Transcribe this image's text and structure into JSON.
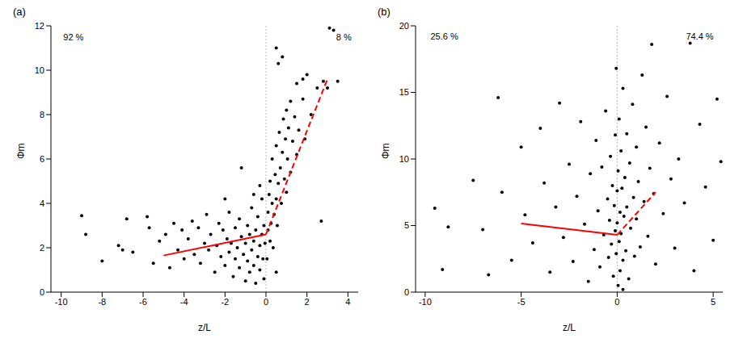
{
  "chart_data": [
    {
      "type": "scatter",
      "title": "(a)",
      "x_label": "z/L",
      "y_label": "Φm",
      "xlim": [
        -10.5,
        4.5
      ],
      "xticks": [
        -10,
        -8,
        -6,
        -4,
        -2,
        0,
        2,
        4
      ],
      "ylim": [
        0,
        12
      ],
      "yticks": [
        0,
        2,
        4,
        6,
        8,
        10,
        12
      ],
      "vlines": [
        0
      ],
      "annotations": [
        {
          "text": "92 %",
          "x": -9.4,
          "y": 11.5
        },
        {
          "text": "8 %",
          "x": 3.8,
          "y": 11.5
        }
      ],
      "series": [
        {
          "type": "scatter",
          "color": "#000000",
          "marker": "circle",
          "x": [
            -9,
            -8.8,
            -8,
            -7.2,
            -7,
            -6.8,
            -6.5,
            -5.8,
            -5.7,
            -5.5,
            -5.2,
            -4.9,
            -4.7,
            -4.5,
            -4.3,
            -4.1,
            -4,
            -3.8,
            -3.6,
            -3.5,
            -3.3,
            -3.2,
            -3.0,
            -2.9,
            -2.8,
            -2.7,
            -2.5,
            -2.4,
            -2.3,
            -2.2,
            -2.1,
            -2.0,
            -1.9,
            -1.8,
            -1.8,
            -1.7,
            -1.6,
            -1.5,
            -1.5,
            -1.4,
            -1.3,
            -1.3,
            -1.2,
            -1.1,
            -1.0,
            -1.0,
            -0.9,
            -0.9,
            -0.8,
            -0.8,
            -0.7,
            -0.7,
            -0.6,
            -0.6,
            -0.5,
            -0.5,
            -0.4,
            -0.4,
            -0.3,
            -0.3,
            -0.2,
            -0.2,
            -0.15,
            -0.1,
            -0.1,
            -0.05,
            -1.2,
            -2.0,
            -0.3,
            -0.6,
            0.05,
            0.1,
            0.1,
            0.15,
            0.2,
            0.2,
            0.25,
            0.3,
            0.3,
            0.35,
            0.4,
            0.45,
            0.5,
            0.5,
            0.55,
            0.6,
            0.65,
            0.7,
            0.75,
            0.8,
            0.85,
            0.9,
            0.95,
            1.0,
            1.0,
            1.05,
            1.1,
            1.2,
            1.2,
            1.3,
            1.4,
            1.5,
            1.5,
            1.6,
            1.8,
            1.9,
            2.0,
            2.2,
            2.5,
            2.8,
            3.0,
            3.1,
            3.3,
            3.5,
            0.8,
            0.5,
            0.6,
            1.8,
            2.7,
            0.5
          ],
          "values": [
            3.45,
            2.6,
            1.4,
            2.1,
            1.9,
            3.3,
            1.8,
            3.4,
            2.9,
            1.3,
            2.3,
            2.6,
            1.1,
            3.1,
            1.9,
            2.8,
            1.5,
            2.4,
            3.2,
            1.7,
            2.9,
            1.3,
            2.2,
            3.5,
            1.9,
            2.6,
            0.9,
            2.1,
            3.1,
            1.6,
            2.8,
            1.2,
            2.4,
            3.6,
            1.8,
            2.2,
            0.7,
            2.9,
            1.5,
            2.0,
            3.3,
            1.1,
            2.5,
            1.7,
            0.5,
            2.2,
            3.0,
            1.4,
            2.6,
            0.9,
            1.9,
            3.8,
            2.3,
            1.2,
            2.8,
            0.4,
            1.6,
            3.4,
            2.1,
            1.0,
            2.6,
            4.2,
            1.5,
            3.0,
            0.6,
            2.2,
            5.6,
            4.2,
            4.8,
            4.4,
            1.5,
            2.8,
            3.6,
            4.4,
            2.3,
            5.0,
            3.1,
            4.0,
            6.0,
            2.0,
            3.5,
            5.3,
            4.2,
            6.6,
            3.0,
            4.9,
            7.2,
            5.6,
            4.0,
            6.3,
            7.8,
            5.1,
            6.9,
            4.5,
            8.2,
            6.0,
            7.4,
            5.4,
            8.6,
            6.8,
            7.9,
            6.2,
            9.4,
            7.3,
            8.7,
            6.9,
            9.8,
            8.0,
            9.2,
            9.5,
            9.2,
            11.9,
            11.8,
            9.5,
            10.6,
            11.0,
            10.3,
            9.6,
            3.2,
            0.9
          ]
        },
        {
          "type": "line",
          "color": "#ff0000",
          "line_style": "solid",
          "x": [
            -5,
            0
          ],
          "values": [
            1.65,
            2.6
          ]
        },
        {
          "type": "line",
          "color": "#ff0000",
          "line_style": "dashed",
          "x": [
            0,
            3
          ],
          "values": [
            2.6,
            9.6
          ]
        }
      ]
    },
    {
      "type": "scatter",
      "title": "(b)",
      "x_label": "z/L",
      "y_label": "Φm",
      "xlim": [
        -10.5,
        5.5
      ],
      "xticks": [
        -10,
        -5,
        0,
        5
      ],
      "ylim": [
        0,
        20
      ],
      "yticks": [
        0,
        5,
        10,
        15,
        20
      ],
      "vlines": [
        0
      ],
      "annotations": [
        {
          "text": "25.6 %",
          "x": -9.0,
          "y": 19.2
        },
        {
          "text": "74.4 %",
          "x": 4.3,
          "y": 19.2
        }
      ],
      "series": [
        {
          "type": "scatter",
          "color": "#000000",
          "marker": "circle",
          "x": [
            -9.5,
            -9.1,
            -8.8,
            -7.5,
            -7.0,
            -6.7,
            -6.2,
            -6.0,
            -5.5,
            -5.0,
            -4.8,
            -4.4,
            -4.0,
            -3.8,
            -3.5,
            -3.2,
            -3.0,
            -2.8,
            -2.5,
            -2.3,
            -2.1,
            -1.9,
            -1.7,
            -1.5,
            -1.4,
            -1.2,
            -1.1,
            -1.0,
            -0.9,
            -0.8,
            -0.7,
            -0.6,
            -0.5,
            -0.45,
            -0.4,
            -0.35,
            -0.3,
            -0.25,
            -0.2,
            -0.15,
            -0.1,
            -0.1,
            -0.05,
            -0.05,
            0.0,
            0.0,
            0.05,
            0.05,
            0.1,
            0.1,
            0.15,
            0.15,
            0.2,
            0.2,
            0.25,
            0.3,
            0.3,
            0.35,
            0.4,
            0.45,
            0.5,
            0.5,
            0.6,
            0.65,
            0.7,
            0.8,
            0.85,
            0.9,
            1.0,
            1.0,
            1.1,
            1.2,
            1.3,
            1.4,
            1.5,
            1.6,
            1.7,
            1.8,
            1.9,
            2.0,
            2.2,
            2.4,
            2.6,
            2.8,
            3.0,
            3.2,
            3.5,
            3.8,
            4.0,
            4.3,
            4.6,
            5.0,
            5.2,
            5.4,
            0.3
          ],
          "values": [
            6.3,
            1.7,
            4.9,
            8.4,
            4.7,
            1.3,
            14.6,
            7.5,
            2.4,
            10.9,
            5.8,
            3.7,
            12.3,
            8.2,
            1.5,
            6.4,
            14.2,
            4.1,
            9.6,
            2.3,
            7.2,
            12.8,
            5.1,
            0.8,
            8.9,
            3.2,
            11.4,
            6.1,
            1.9,
            9.4,
            4.3,
            13.6,
            7.0,
            2.6,
            5.4,
            10.2,
            3.6,
            8.0,
            1.2,
            6.5,
            11.8,
            4.6,
            16.8,
            2.9,
            7.6,
            5.2,
            0.5,
            9.1,
            3.8,
            13.0,
            6.0,
            1.6,
            10.6,
            4.4,
            7.8,
            2.4,
            15.3,
            5.7,
            8.6,
            3.1,
            11.9,
            6.4,
            1.0,
            9.7,
            4.8,
            14.1,
            7.1,
            2.7,
            10.9,
            5.5,
            8.3,
            3.4,
            16.3,
            6.8,
            12.4,
            4.2,
            9.3,
            18.6,
            7.4,
            2.1,
            11.2,
            5.9,
            14.7,
            8.5,
            3.3,
            10.0,
            6.7,
            18.7,
            1.6,
            12.6,
            7.9,
            3.9,
            14.5,
            9.8,
            0.2
          ]
        },
        {
          "type": "line",
          "color": "#ff0000",
          "line_style": "solid",
          "x": [
            -5,
            0
          ],
          "values": [
            5.15,
            4.3
          ]
        },
        {
          "type": "line",
          "color": "#ff0000",
          "line_style": "dashed",
          "x": [
            0,
            2
          ],
          "values": [
            4.3,
            7.5
          ]
        }
      ]
    }
  ]
}
